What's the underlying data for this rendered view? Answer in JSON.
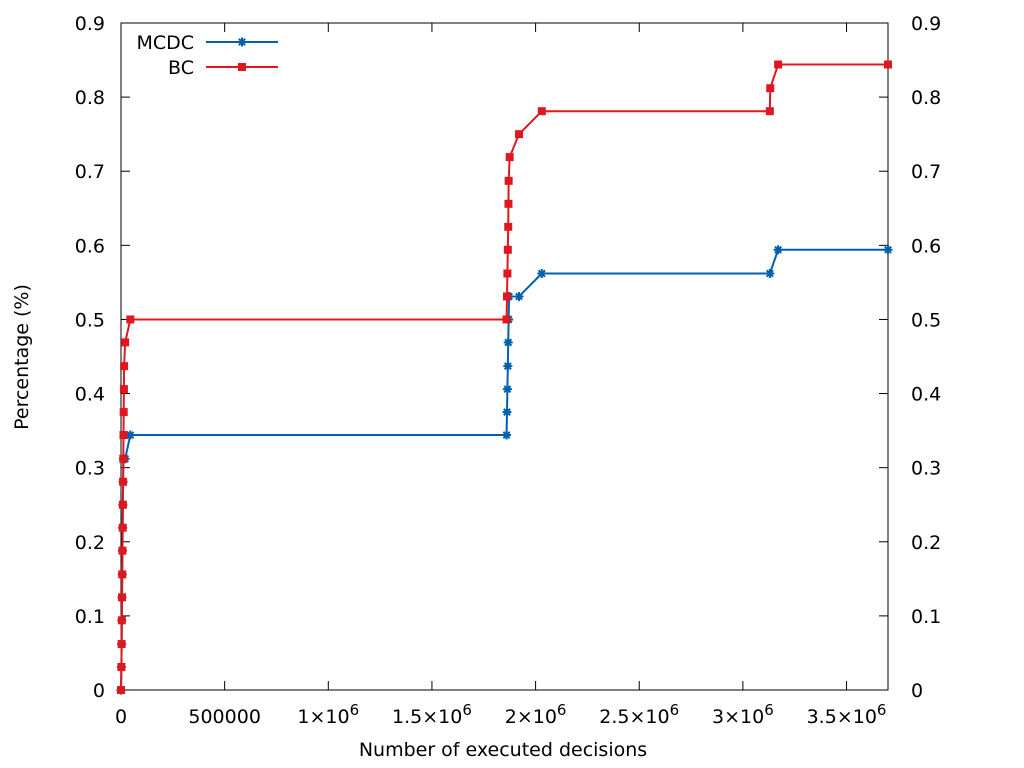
{
  "chart_data": {
    "type": "line",
    "title": "",
    "xlabel": "Number of executed decisions",
    "ylabel": "Percentage (%)",
    "xlim": [
      0,
      3700000
    ],
    "ylim": [
      0,
      0.9
    ],
    "grid": false,
    "legend_position": "top-left",
    "x_ticks": [
      {
        "value": 0,
        "label": "0"
      },
      {
        "value": 500000,
        "label": "500000"
      },
      {
        "value": 1000000,
        "mant": "1",
        "exp": "6"
      },
      {
        "value": 1500000,
        "mant": "1.5",
        "exp": "6"
      },
      {
        "value": 2000000,
        "mant": "2",
        "exp": "6"
      },
      {
        "value": 2500000,
        "mant": "2.5",
        "exp": "6"
      },
      {
        "value": 3000000,
        "mant": "3",
        "exp": "6"
      },
      {
        "value": 3500000,
        "mant": "3.5",
        "exp": "6"
      }
    ],
    "y_ticks": [
      {
        "value": 0,
        "label": "0"
      },
      {
        "value": 0.1,
        "label": "0.1"
      },
      {
        "value": 0.2,
        "label": "0.2"
      },
      {
        "value": 0.3,
        "label": "0.3"
      },
      {
        "value": 0.4,
        "label": "0.4"
      },
      {
        "value": 0.5,
        "label": "0.5"
      },
      {
        "value": 0.6,
        "label": "0.6"
      },
      {
        "value": 0.7,
        "label": "0.7"
      },
      {
        "value": 0.8,
        "label": "0.8"
      },
      {
        "value": 0.9,
        "label": "0.9"
      }
    ],
    "series": [
      {
        "name": "MCDC",
        "color": "#0060ad",
        "marker": "star",
        "points": [
          [
            0,
            0
          ],
          [
            2000,
            0.031
          ],
          [
            3000,
            0.062
          ],
          [
            4000,
            0.094
          ],
          [
            5000,
            0.125
          ],
          [
            6000,
            0.156
          ],
          [
            7000,
            0.188
          ],
          [
            8000,
            0.219
          ],
          [
            9000,
            0.25
          ],
          [
            10000,
            0.281
          ],
          [
            12000,
            0.312
          ],
          [
            20000,
            0.312
          ],
          [
            45000,
            0.344
          ],
          [
            1860000,
            0.344
          ],
          [
            1862000,
            0.375
          ],
          [
            1864000,
            0.406
          ],
          [
            1866000,
            0.437
          ],
          [
            1868000,
            0.469
          ],
          [
            1870000,
            0.5
          ],
          [
            1872000,
            0.531
          ],
          [
            1920000,
            0.531
          ],
          [
            2030000,
            0.562
          ],
          [
            3130000,
            0.562
          ],
          [
            3170000,
            0.594
          ],
          [
            3700000,
            0.594
          ]
        ]
      },
      {
        "name": "BC",
        "color": "#dd181f",
        "marker": "square",
        "points": [
          [
            0,
            0
          ],
          [
            2000,
            0.031
          ],
          [
            3000,
            0.062
          ],
          [
            4000,
            0.094
          ],
          [
            5000,
            0.125
          ],
          [
            6000,
            0.156
          ],
          [
            7000,
            0.188
          ],
          [
            8000,
            0.219
          ],
          [
            9000,
            0.25
          ],
          [
            10000,
            0.281
          ],
          [
            11000,
            0.312
          ],
          [
            12000,
            0.344
          ],
          [
            13000,
            0.375
          ],
          [
            14000,
            0.406
          ],
          [
            15000,
            0.437
          ],
          [
            20000,
            0.469
          ],
          [
            45000,
            0.5
          ],
          [
            1860000,
            0.5
          ],
          [
            1862000,
            0.531
          ],
          [
            1864000,
            0.562
          ],
          [
            1866000,
            0.594
          ],
          [
            1868000,
            0.625
          ],
          [
            1869000,
            0.656
          ],
          [
            1870000,
            0.687
          ],
          [
            1875000,
            0.719
          ],
          [
            1920000,
            0.75
          ],
          [
            2030000,
            0.781
          ],
          [
            3130000,
            0.781
          ],
          [
            3132000,
            0.812
          ],
          [
            3170000,
            0.844
          ],
          [
            3700000,
            0.844
          ]
        ]
      }
    ]
  }
}
